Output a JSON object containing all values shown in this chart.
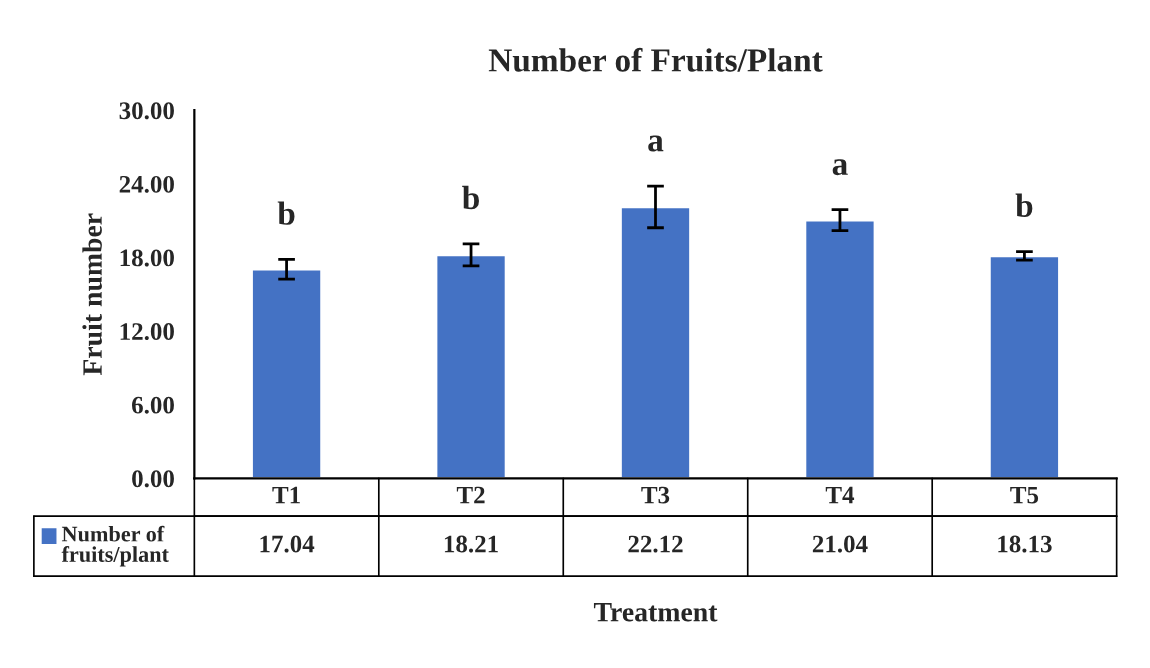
{
  "chart_data": {
    "type": "bar",
    "title": "Number of Fruits/Plant",
    "xlabel": "Treatment",
    "ylabel": "Fruit number",
    "categories": [
      "T1",
      "T2",
      "T3",
      "T4",
      "T5"
    ],
    "series": [
      {
        "name": "Number of fruits/plant",
        "color": "#4472c4",
        "values": [
          17.04,
          18.21,
          22.12,
          21.04,
          18.13
        ],
        "errors": [
          0.8,
          0.9,
          1.7,
          0.85,
          0.35
        ]
      }
    ],
    "ylim": [
      0,
      30
    ],
    "yticks": [
      {
        "value": 0,
        "label": "0.00"
      },
      {
        "value": 6,
        "label": "6.00"
      },
      {
        "value": 12,
        "label": "12.00"
      },
      {
        "value": 18,
        "label": "18.00"
      },
      {
        "value": 24,
        "label": "24.00"
      },
      {
        "value": 30,
        "label": "30.00"
      }
    ],
    "data_labels": true,
    "legend": "bottom left",
    "grid": false,
    "annotations": [
      "b",
      "b",
      "a",
      "a",
      "b"
    ]
  }
}
